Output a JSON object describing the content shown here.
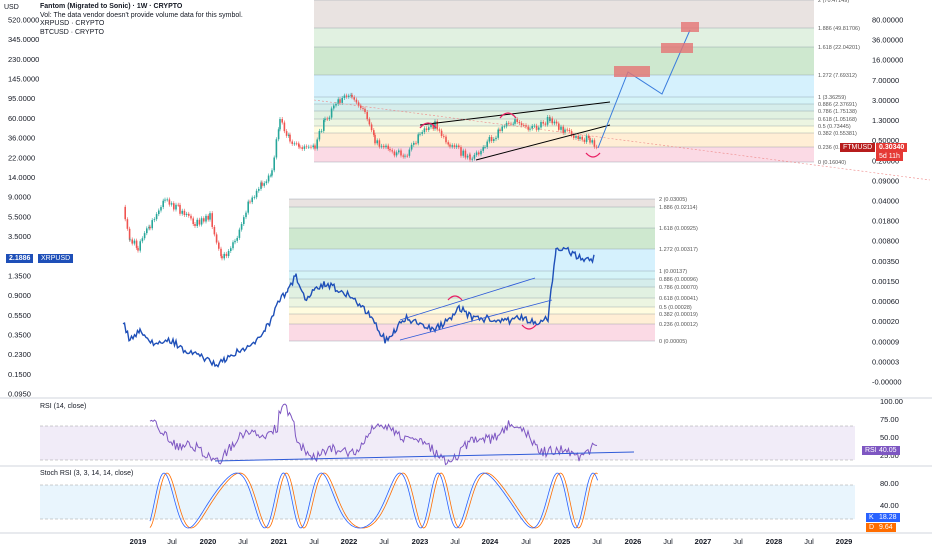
{
  "header": {
    "currency": "USD",
    "title": "Fantom (Migrated to Sonic) · 1W · CRYPTO",
    "vol_note": "Vol: The data vendor doesn't provide volume data for this symbol.",
    "overlay1": "XRPUSD · CRYPTO",
    "overlay2": "BTCUSD · CRYPTO"
  },
  "colors": {
    "up": "#26a69a",
    "down": "#ef5350",
    "xrp_line": "#1e4fb8",
    "rsi": "#7e57c2",
    "stoch_k": "#2962ff",
    "stoch_d": "#ff6d00",
    "trend": "#2f5bd8",
    "arc": "#e91e63"
  },
  "chart_data": [
    {
      "type": "line",
      "name_label": "FTMUSD",
      "last_price": "0.30340",
      "countdown": "5d 11h",
      "left_axis_ticks": [
        "520.0000",
        "345.0000",
        "230.0000",
        "145.0000",
        "95.0000",
        "60.0000",
        "36.0000",
        "22.0000",
        "14.0000",
        "9.0000",
        "5.5000",
        "3.5000",
        "2.1886",
        "1.3500",
        "0.9000",
        "0.5500",
        "0.3500",
        "0.2300",
        "0.1500",
        "0.0950"
      ],
      "right_axis_ticks": [
        "80.00000",
        "36.00000",
        "16.00000",
        "7.00000",
        "3.00000",
        "1.30000",
        "0.50000",
        "0.20000",
        "0.09000",
        "0.04000",
        "0.01800",
        "0.00800",
        "0.00350",
        "0.00150",
        "0.00060",
        "0.00020",
        "0.00009",
        "0.00003",
        "-0.00000"
      ],
      "x_ticks": [
        "2019",
        "Jul",
        "2020",
        "Jul",
        "2021",
        "Jul",
        "2022",
        "Jul",
        "2023",
        "Jul",
        "2024",
        "Jul",
        "2025",
        "Jul",
        "2026",
        "Jul",
        "2027",
        "Jul",
        "2028",
        "Jul",
        "2029"
      ],
      "fib_upper": [
        {
          "label": "0 (0.16040)"
        },
        {
          "label": "0.236 (0.2"
        },
        {
          "label": "0.382 (0.55381)"
        },
        {
          "label": "0.5 (0.73445)"
        },
        {
          "label": "0.618 (1.05168)"
        },
        {
          "label": "0.786 (1.75138)"
        },
        {
          "label": "0.886 (2.37691)"
        },
        {
          "label": "1 (3.36259)"
        },
        {
          "label": "1.272 (7.69312)"
        },
        {
          "label": "1.618 (22.04201)"
        },
        {
          "label": "1.886 (49.81706)"
        },
        {
          "label": "2 (70.47149)"
        }
      ],
      "fib_lower": [
        {
          "label": "0 (0.00005)"
        },
        {
          "label": "0.236 (0.00012)"
        },
        {
          "label": "0.382 (0.00019)"
        },
        {
          "label": "0.5 (0.00028)"
        },
        {
          "label": "0.618 (0.00041)"
        },
        {
          "label": "0.786 (0.00070)"
        },
        {
          "label": "0.886 (0.00096)"
        },
        {
          "label": "1 (0.00137)"
        },
        {
          "label": "1.272 (0.00317)"
        },
        {
          "label": "1.618 (0.00925)"
        },
        {
          "label": "1.886 (0.02114)"
        },
        {
          "label": "2 (0.03005)"
        }
      ]
    },
    {
      "type": "line",
      "name_label": "XRPUSD",
      "last_price": "2.1886"
    },
    {
      "type": "line",
      "title": "RSI (14, close)",
      "badge": "RSI",
      "last_value": "40.05",
      "y_ticks": [
        "100.00",
        "75.00",
        "50.00",
        "25.00"
      ]
    },
    {
      "type": "line",
      "title": "Stoch RSI (3, 3, 14, 14, close)",
      "k_label": "K",
      "k_value": "18.28",
      "d_label": "D",
      "d_value": "9.64",
      "y_ticks": [
        "80.00",
        "40.00"
      ]
    }
  ]
}
